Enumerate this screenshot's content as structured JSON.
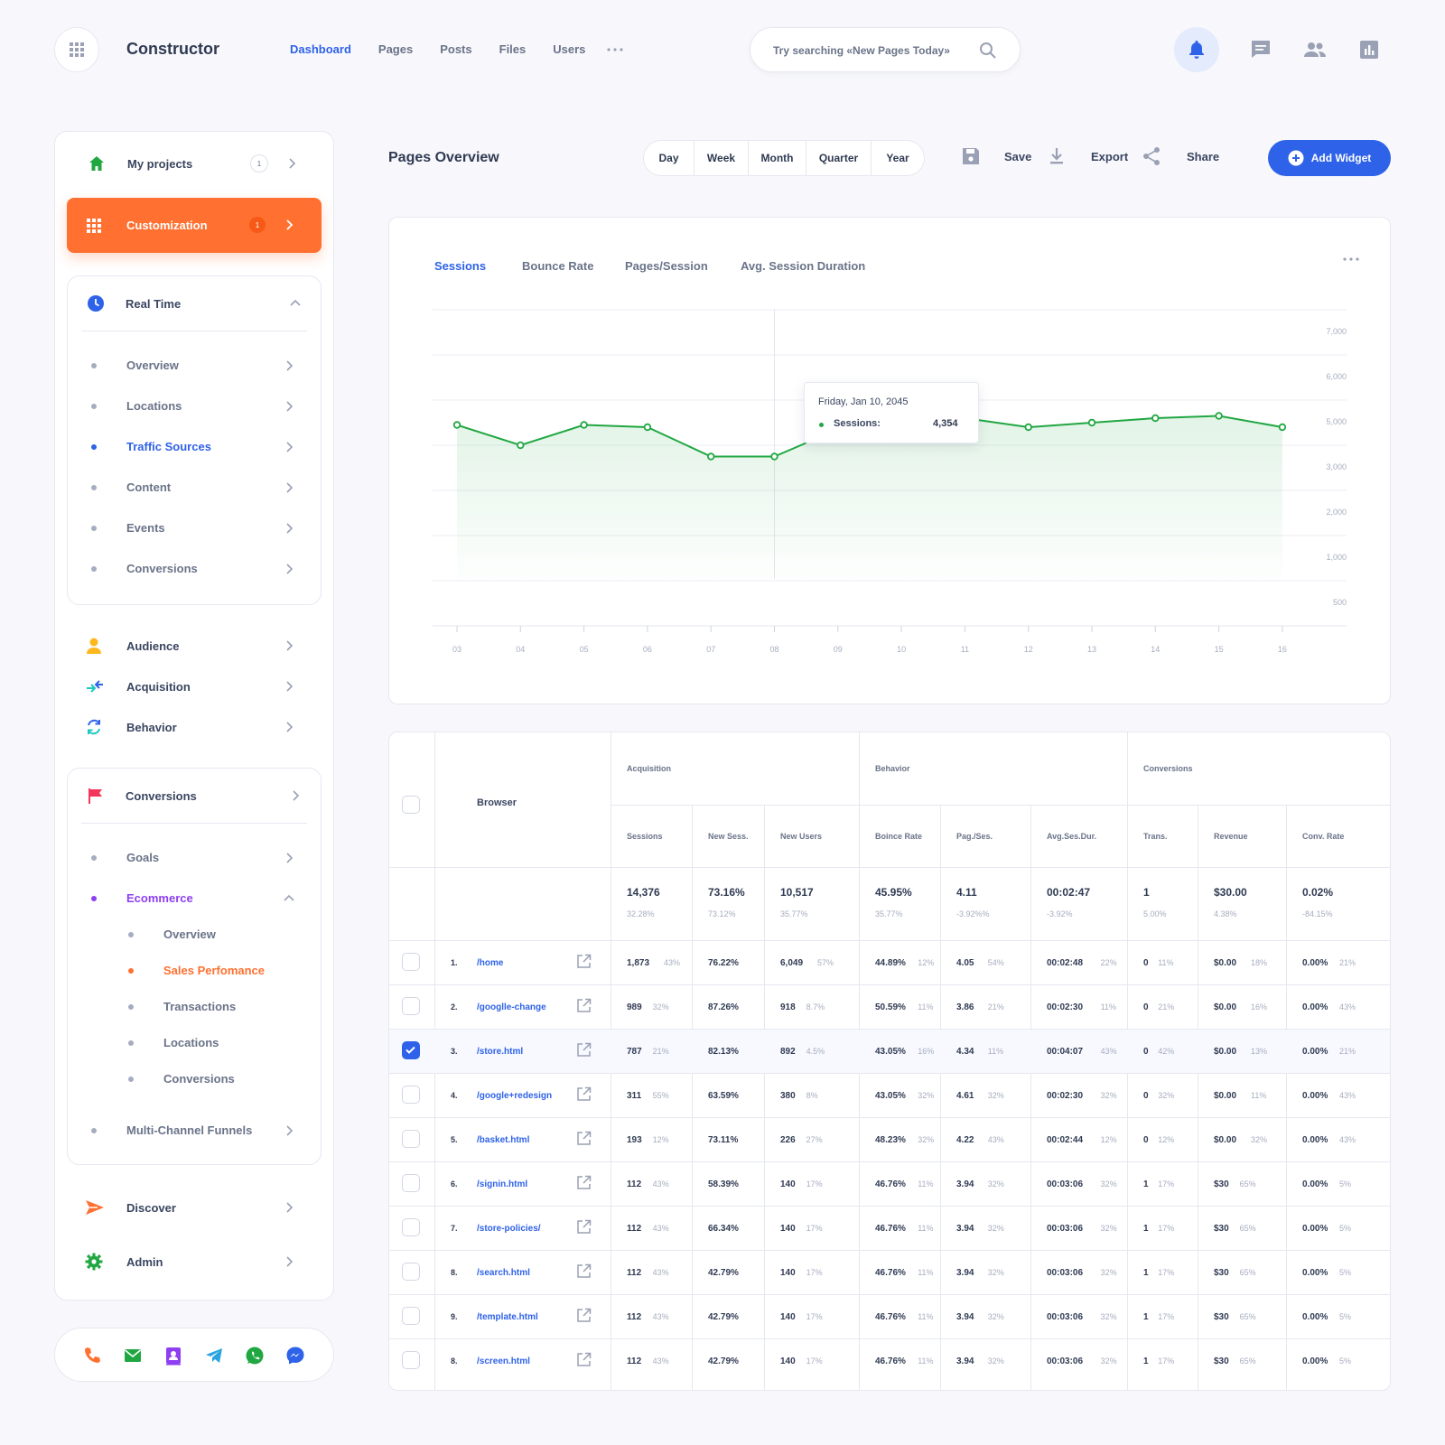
{
  "header": {
    "brand": "Constructor",
    "nav": [
      "Dashboard",
      "Pages",
      "Posts",
      "Files",
      "Users"
    ],
    "search_placeholder": "Try searching «New Pages Today»"
  },
  "sidebar": {
    "my_projects": {
      "label": "My projects",
      "badge": "1"
    },
    "customization": {
      "label": "Customization",
      "badge": "1"
    },
    "real_time": {
      "label": "Real Time",
      "items": [
        "Overview",
        "Locations",
        "Traffic Sources",
        "Content",
        "Events",
        "Conversions"
      ]
    },
    "audience": "Audience",
    "acquisition": "Acquisition",
    "behavior": "Behavior",
    "conversions": {
      "label": "Conversions",
      "goals": "Goals",
      "ecommerce": "Ecommerce",
      "ecommerce_items": [
        "Overview",
        "Sales Perfomance",
        "Transactions",
        "Locations",
        "Conversions"
      ],
      "multi_channel": "Multi-Channel Funnels"
    },
    "discover": "Discover",
    "admin": "Admin"
  },
  "main": {
    "title": "Pages Overview",
    "periods": [
      "Day",
      "Week",
      "Month",
      "Quarter",
      "Year"
    ],
    "actions": {
      "save": "Save",
      "export": "Export",
      "share": "Share"
    },
    "add_widget": "Add Widget"
  },
  "chart_data": {
    "type": "area",
    "tabs": [
      "Sessions",
      "Bounce Rate",
      "Pages/Session",
      "Avg. Session Duration"
    ],
    "x": [
      "03",
      "04",
      "05",
      "06",
      "07",
      "08",
      "09",
      "10",
      "11",
      "12",
      "13",
      "14",
      "15",
      "16"
    ],
    "y_ticks": [
      "7,000",
      "6,000",
      "5,000",
      "3,000",
      "2,000",
      "1,000",
      "500"
    ],
    "series": [
      {
        "values": [
          4450,
          4000,
          4450,
          4400,
          3750,
          3750,
          4354,
          4700,
          4600,
          4400,
          4500,
          4600,
          4650,
          4400
        ]
      }
    ],
    "tooltip": {
      "date": "Friday, Jan 10, 2045",
      "label": "Sessions:",
      "value": "4,354"
    },
    "grid": true,
    "line_color": "#21a742"
  },
  "table": {
    "browser_header": "Browser",
    "groups": [
      "Acquisition",
      "Behavior",
      "Conversions"
    ],
    "columns": [
      "Sessions",
      "New Sess.",
      "New Users",
      "Boince Rate",
      "Pag./Ses.",
      "Avg.Ses.Dur.",
      "Trans.",
      "Revenue",
      "Conv. Rate"
    ],
    "totals": [
      [
        "14,376",
        "32.28%"
      ],
      [
        "73.16%",
        "73.12%"
      ],
      [
        "10,517",
        "35.77%"
      ],
      [
        "45.95%",
        "35.77%"
      ],
      [
        "4.11",
        "-3.92%%"
      ],
      [
        "00:02:47",
        "-3.92%"
      ],
      [
        "1",
        "5.00%"
      ],
      [
        "$30.00",
        "4.38%"
      ],
      [
        "0.02%",
        "-84.15%"
      ]
    ],
    "rows": [
      {
        "num": "1.",
        "page": "/home",
        "checked": false,
        "cells": [
          [
            "1,873",
            "43%"
          ],
          [
            "76.22%",
            ""
          ],
          [
            "6,049",
            "57%"
          ],
          [
            "44.89%",
            "12%"
          ],
          [
            "4.05",
            "54%"
          ],
          [
            "00:02:48",
            "22%"
          ],
          [
            "0",
            "11%"
          ],
          [
            "$0.00",
            "18%"
          ],
          [
            "0.00%",
            "21%"
          ]
        ]
      },
      {
        "num": "2.",
        "page": "/googlle-change",
        "checked": false,
        "cells": [
          [
            "989",
            "32%"
          ],
          [
            "87.26%",
            ""
          ],
          [
            "918",
            "8.7%"
          ],
          [
            "50.59%",
            "11%"
          ],
          [
            "3.86",
            "21%"
          ],
          [
            "00:02:30",
            "11%"
          ],
          [
            "0",
            "21%"
          ],
          [
            "$0.00",
            "16%"
          ],
          [
            "0.00%",
            "43%"
          ]
        ]
      },
      {
        "num": "3.",
        "page": "/store.html",
        "checked": true,
        "cells": [
          [
            "787",
            "21%"
          ],
          [
            "82.13%",
            ""
          ],
          [
            "892",
            "4.5%"
          ],
          [
            "43.05%",
            "16%"
          ],
          [
            "4.34",
            "11%"
          ],
          [
            "00:04:07",
            "43%"
          ],
          [
            "0",
            "42%"
          ],
          [
            "$0.00",
            "13%"
          ],
          [
            "0.00%",
            "21%"
          ]
        ]
      },
      {
        "num": "4.",
        "page": "/google+redesign",
        "checked": false,
        "cells": [
          [
            "311",
            "55%"
          ],
          [
            "63.59%",
            ""
          ],
          [
            "380",
            "8%"
          ],
          [
            "43.05%",
            "32%"
          ],
          [
            "4.61",
            "32%"
          ],
          [
            "00:02:30",
            "32%"
          ],
          [
            "0",
            "32%"
          ],
          [
            "$0.00",
            "11%"
          ],
          [
            "0.00%",
            "43%"
          ]
        ]
      },
      {
        "num": "5.",
        "page": "/basket.html",
        "checked": false,
        "cells": [
          [
            "193",
            "12%"
          ],
          [
            "73.11%",
            ""
          ],
          [
            "226",
            "27%"
          ],
          [
            "48.23%",
            "32%"
          ],
          [
            "4.22",
            "43%"
          ],
          [
            "00:02:44",
            "12%"
          ],
          [
            "0",
            "12%"
          ],
          [
            "$0.00",
            "32%"
          ],
          [
            "0.00%",
            "43%"
          ]
        ]
      },
      {
        "num": "6.",
        "page": "/signin.html",
        "checked": false,
        "cells": [
          [
            "112",
            "43%"
          ],
          [
            "58.39%",
            ""
          ],
          [
            "140",
            "17%"
          ],
          [
            "46.76%",
            "11%"
          ],
          [
            "3.94",
            "32%"
          ],
          [
            "00:03:06",
            "32%"
          ],
          [
            "1",
            "17%"
          ],
          [
            "$30",
            "65%"
          ],
          [
            "0.00%",
            "5%"
          ]
        ]
      },
      {
        "num": "7.",
        "page": "/store-policies/",
        "checked": false,
        "cells": [
          [
            "112",
            "43%"
          ],
          [
            "66.34%",
            ""
          ],
          [
            "140",
            "17%"
          ],
          [
            "46.76%",
            "11%"
          ],
          [
            "3.94",
            "32%"
          ],
          [
            "00:03:06",
            "32%"
          ],
          [
            "1",
            "17%"
          ],
          [
            "$30",
            "65%"
          ],
          [
            "0.00%",
            "5%"
          ]
        ]
      },
      {
        "num": "8.",
        "page": "/search.html",
        "checked": false,
        "cells": [
          [
            "112",
            "43%"
          ],
          [
            "42.79%",
            ""
          ],
          [
            "140",
            "17%"
          ],
          [
            "46.76%",
            "11%"
          ],
          [
            "3.94",
            "32%"
          ],
          [
            "00:03:06",
            "32%"
          ],
          [
            "1",
            "17%"
          ],
          [
            "$30",
            "65%"
          ],
          [
            "0.00%",
            "5%"
          ]
        ]
      },
      {
        "num": "9.",
        "page": "/template.html",
        "checked": false,
        "cells": [
          [
            "112",
            "43%"
          ],
          [
            "42.79%",
            ""
          ],
          [
            "140",
            "17%"
          ],
          [
            "46.76%",
            "11%"
          ],
          [
            "3.94",
            "32%"
          ],
          [
            "00:03:06",
            "32%"
          ],
          [
            "1",
            "17%"
          ],
          [
            "$30",
            "65%"
          ],
          [
            "0.00%",
            "5%"
          ]
        ]
      },
      {
        "num": "8.",
        "page": "/screen.html",
        "checked": false,
        "cells": [
          [
            "112",
            "43%"
          ],
          [
            "42.79%",
            ""
          ],
          [
            "140",
            "17%"
          ],
          [
            "46.76%",
            "11%"
          ],
          [
            "3.94",
            "32%"
          ],
          [
            "00:03:06",
            "32%"
          ],
          [
            "1",
            "17%"
          ],
          [
            "$30",
            "65%"
          ],
          [
            "0.00%",
            "5%"
          ]
        ]
      }
    ]
  },
  "contacts": [
    "phone-icon",
    "email-icon",
    "contact-card-icon",
    "telegram-icon",
    "whatsapp-icon",
    "messenger-icon"
  ]
}
